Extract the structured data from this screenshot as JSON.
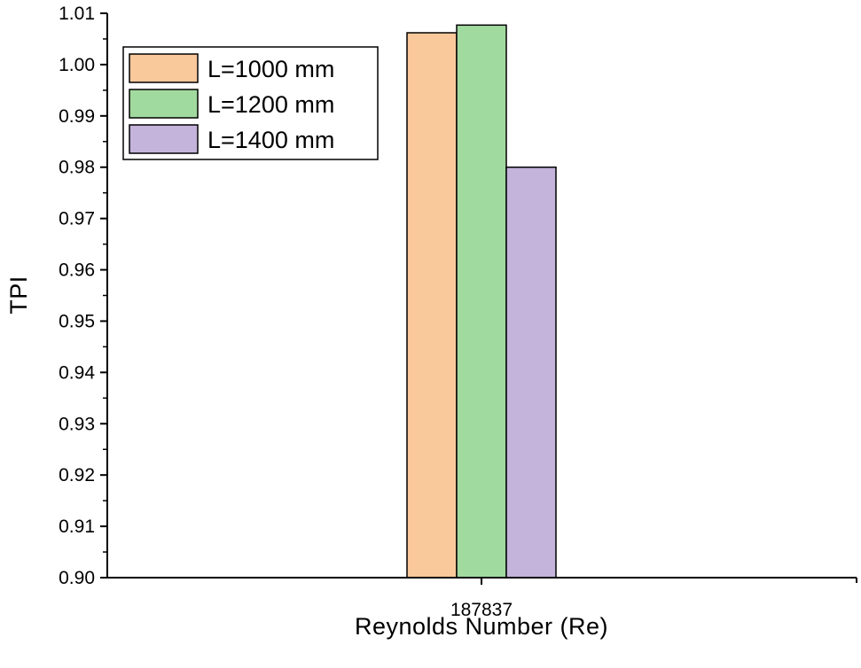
{
  "chart_data": {
    "type": "bar",
    "title": "",
    "xlabel": "Reynolds Number (Re)",
    "ylabel": "TPI",
    "categories": [
      "187837"
    ],
    "ylim": [
      0.9,
      1.01
    ],
    "yticks": [
      "0.90",
      "0.91",
      "0.92",
      "0.93",
      "0.94",
      "0.95",
      "0.96",
      "0.97",
      "0.98",
      "0.99",
      "1.00",
      "1.01"
    ],
    "series": [
      {
        "name": "L=1000 mm",
        "values": [
          1.0062
        ],
        "color": "#F9C89B"
      },
      {
        "name": "L=1200 mm",
        "values": [
          1.0077
        ],
        "color": "#A1DA9E"
      },
      {
        "name": "L=1400 mm",
        "values": [
          0.98
        ],
        "color": "#C4B3DA"
      }
    ],
    "legend_position": "top-left",
    "grid": false
  }
}
